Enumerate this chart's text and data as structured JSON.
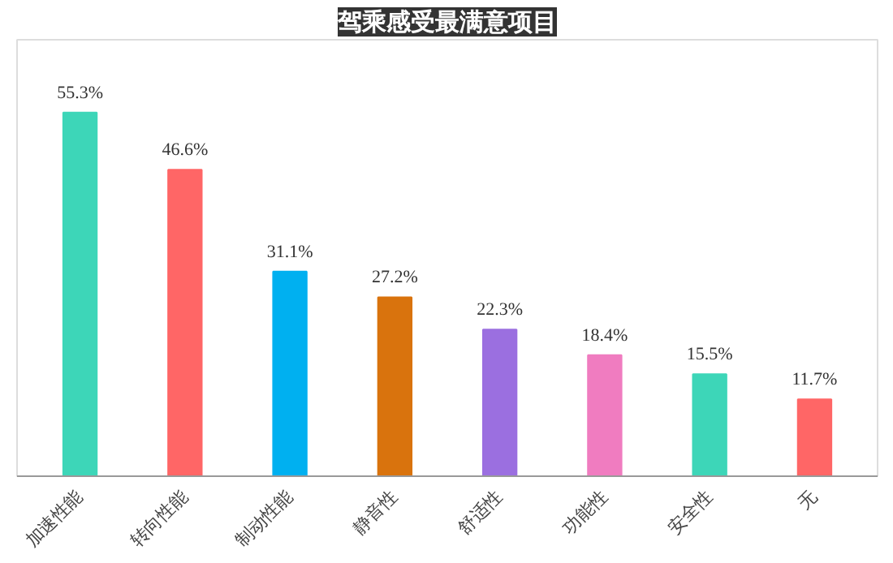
{
  "chart_data": {
    "type": "bar",
    "title": "驾乘感受最满意项目",
    "categories": [
      "加速性能",
      "转向性能",
      "制动性能",
      "静音性",
      "舒适性",
      "功能性",
      "安全性",
      "无"
    ],
    "values": [
      55.3,
      46.6,
      31.1,
      27.2,
      22.3,
      18.4,
      15.5,
      11.7
    ],
    "value_labels": [
      "55.3%",
      "46.6%",
      "31.1%",
      "27.2%",
      "22.3%",
      "18.4%",
      "15.5%",
      "11.7%"
    ],
    "colors": [
      "#3dd6b8",
      "#ff6666",
      "#00b0f0",
      "#d9730d",
      "#9b6fe0",
      "#f07cc0",
      "#3dd6b8",
      "#ff6666"
    ],
    "relative": false,
    "grid": false
  }
}
